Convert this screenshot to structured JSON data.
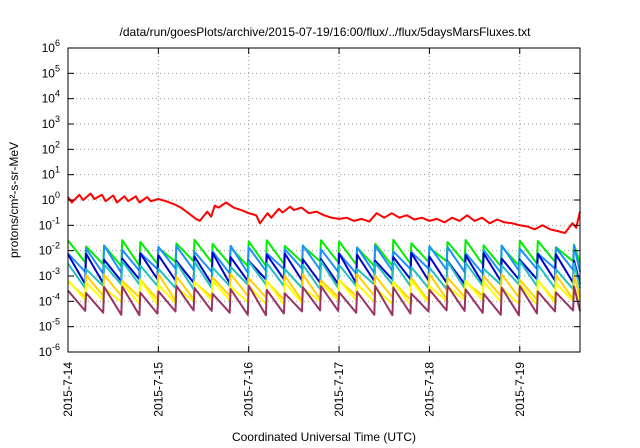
{
  "chart_data": {
    "type": "line",
    "title": "/data/run/goesPlots/archive/2015-07-19/16:00/flux/../flux/5daysMarsFluxes.txt",
    "xlabel": "Coordinated Universal Time (UTC)",
    "ylabel": "protons/cm²-s-sr-MeV",
    "x_tick_labels": [
      "2015-7-14",
      "2015-7-15",
      "2015-7-16",
      "2015-7-17",
      "2015-7-18",
      "2015-7-19"
    ],
    "xlim": [
      "2015-07-14",
      "2015-07-19 16:00"
    ],
    "y_scale": "log",
    "ylim": [
      1e-06,
      1000000.0
    ],
    "y_tick_exponents": [
      -6,
      -5,
      -4,
      -3,
      -2,
      -1,
      0,
      1,
      2,
      3,
      4,
      5,
      6
    ],
    "grid": true,
    "legend": "none",
    "series": [
      {
        "color": "#ff0000",
        "x": [
          "2015-07-14 00:00",
          "2015-07-14 01:00",
          "2015-07-14 03:00",
          "2015-07-14 04:00",
          "2015-07-14 06:00",
          "2015-07-14 07:00",
          "2015-07-14 09:00",
          "2015-07-14 10:00",
          "2015-07-14 12:00",
          "2015-07-14 13:00",
          "2015-07-14 15:00",
          "2015-07-14 16:00",
          "2015-07-14 18:00",
          "2015-07-14 19:00",
          "2015-07-14 21:00",
          "2015-07-14 22:00",
          "2015-07-15 00:00",
          "2015-07-15 02:00",
          "2015-07-15 04:00",
          "2015-07-15 06:00",
          "2015-07-15 08:00",
          "2015-07-15 10:00",
          "2015-07-15 11:00",
          "2015-07-15 13:00",
          "2015-07-15 14:00",
          "2015-07-15 15:00",
          "2015-07-15 16:00",
          "2015-07-15 18:00",
          "2015-07-15 20:00",
          "2015-07-15 22:00",
          "2015-07-16 00:00",
          "2015-07-16 02:00",
          "2015-07-16 03:00",
          "2015-07-16 05:00",
          "2015-07-16 06:00",
          "2015-07-16 08:00",
          "2015-07-16 09:00",
          "2015-07-16 11:00",
          "2015-07-16 12:00",
          "2015-07-16 14:00",
          "2015-07-16 16:00",
          "2015-07-16 18:00",
          "2015-07-16 20:00",
          "2015-07-16 22:00",
          "2015-07-17 00:00",
          "2015-07-17 02:00",
          "2015-07-17 04:00",
          "2015-07-17 06:00",
          "2015-07-17 08:00",
          "2015-07-17 10:00",
          "2015-07-17 12:00",
          "2015-07-17 14:00",
          "2015-07-17 16:00",
          "2015-07-17 18:00",
          "2015-07-17 20:00",
          "2015-07-17 22:00",
          "2015-07-18 00:00",
          "2015-07-18 02:00",
          "2015-07-18 04:00",
          "2015-07-18 06:00",
          "2015-07-18 08:00",
          "2015-07-18 10:00",
          "2015-07-18 12:00",
          "2015-07-18 14:00",
          "2015-07-18 16:00",
          "2015-07-18 18:00",
          "2015-07-18 20:00",
          "2015-07-18 22:00",
          "2015-07-19 00:00",
          "2015-07-19 02:00",
          "2015-07-19 04:00",
          "2015-07-19 06:00",
          "2015-07-19 08:00",
          "2015-07-19 10:00",
          "2015-07-19 12:00",
          "2015-07-19 14:00",
          "2015-07-19 15:00",
          "2015-07-19 16:00"
        ],
        "values": [
          1.3,
          0.8,
          1.6,
          1.0,
          1.8,
          1.1,
          1.6,
          0.9,
          1.5,
          0.8,
          1.4,
          0.9,
          1.4,
          0.8,
          1.3,
          0.9,
          1.1,
          0.9,
          0.7,
          0.5,
          0.3,
          0.18,
          0.15,
          0.35,
          0.22,
          0.6,
          0.5,
          0.8,
          0.5,
          0.4,
          0.3,
          0.25,
          0.12,
          0.3,
          0.2,
          0.45,
          0.32,
          0.55,
          0.4,
          0.5,
          0.3,
          0.35,
          0.25,
          0.2,
          0.18,
          0.2,
          0.15,
          0.18,
          0.14,
          0.3,
          0.2,
          0.3,
          0.2,
          0.25,
          0.17,
          0.2,
          0.15,
          0.18,
          0.13,
          0.2,
          0.15,
          0.25,
          0.15,
          0.2,
          0.12,
          0.17,
          0.13,
          0.12,
          0.1,
          0.09,
          0.07,
          0.1,
          0.07,
          0.06,
          0.05,
          0.12,
          0.08,
          0.35
        ]
      },
      {
        "color": "#00ee00",
        "base": 0.009,
        "amp": 2.6
      },
      {
        "color": "#1e90ff",
        "base": 0.005,
        "amp": 2.8
      },
      {
        "color": "#0000cd",
        "base": 0.0022,
        "amp": 3.2
      },
      {
        "color": "#20c0c0",
        "base": 0.0012,
        "amp": 2.8
      },
      {
        "color": "#ffd000",
        "base": 0.0004,
        "amp": 2.6
      },
      {
        "color": "#ffff00",
        "base": 0.00025,
        "amp": 2.4
      },
      {
        "color": "#993366",
        "base": 0.00012,
        "amp": 3.0
      }
    ]
  }
}
